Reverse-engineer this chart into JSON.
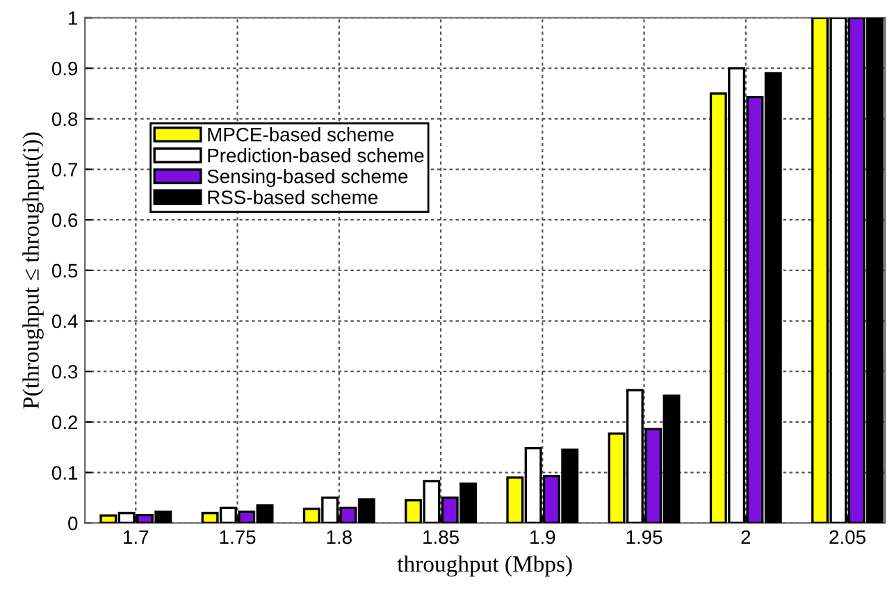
{
  "chart_data": {
    "type": "bar",
    "xlabel": "throughput (Mbps)",
    "ylabel": "P(throughput ≤ throughput(i))",
    "categories": [
      "1.7",
      "1.75",
      "1.8",
      "1.85",
      "1.9",
      "1.95",
      "2",
      "2.05"
    ],
    "series": [
      {
        "name": "MPCE-based scheme",
        "color": "#ffff00",
        "values": [
          0.015,
          0.02,
          0.028,
          0.045,
          0.09,
          0.177,
          0.85,
          1
        ]
      },
      {
        "name": "Prediction-based scheme",
        "color": "#ffffff",
        "values": [
          0.02,
          0.03,
          0.05,
          0.083,
          0.148,
          0.263,
          0.9,
          1
        ]
      },
      {
        "name": "Sensing-based scheme",
        "color": "#7b10e0",
        "values": [
          0.016,
          0.022,
          0.03,
          0.05,
          0.093,
          0.186,
          0.843,
          1
        ]
      },
      {
        "name": "RSS-based scheme",
        "color": "#000000",
        "values": [
          0.022,
          0.035,
          0.047,
          0.078,
          0.145,
          0.252,
          0.89,
          1
        ]
      }
    ],
    "ylim": [
      0,
      1
    ],
    "yticks": [
      0,
      0.1,
      0.2,
      0.3,
      0.4,
      0.5,
      0.6,
      0.7,
      0.8,
      0.9,
      1
    ],
    "grid": true,
    "legend": "top left"
  }
}
